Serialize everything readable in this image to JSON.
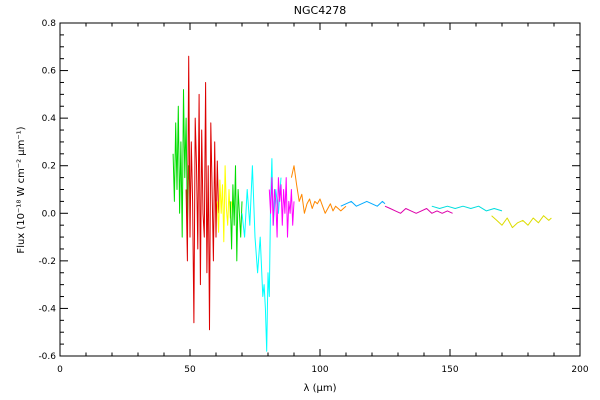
{
  "chart_data": {
    "type": "line",
    "title": "NGC4278",
    "xlabel": "λ (μm)",
    "ylabel": "Flux (10⁻¹⁸ W cm⁻² μm⁻¹)",
    "xlim": [
      0,
      200
    ],
    "ylim": [
      -0.6,
      0.8
    ],
    "xticks": [
      0,
      50,
      100,
      150,
      200
    ],
    "xtick_labels": [
      "0",
      "50",
      "100",
      "150",
      "200"
    ],
    "yticks": [
      -0.6,
      -0.4,
      -0.2,
      0.0,
      0.2,
      0.4,
      0.6,
      0.8
    ],
    "ytick_labels": [
      "-0.6",
      "-0.4",
      "-0.2",
      "0.0",
      "0.2",
      "0.4",
      "0.6",
      "0.8"
    ],
    "grid": false,
    "legend": false,
    "series": [
      {
        "color": "#00dd00",
        "x": [
          43.5,
          44.0,
          44.5,
          45.0,
          45.5,
          46.0,
          46.5,
          47.0,
          47.5,
          48.0,
          48.5,
          49.0,
          49.5,
          50.0
        ],
        "y": [
          0.25,
          0.05,
          0.38,
          0.1,
          0.45,
          0.0,
          0.3,
          -0.1,
          0.52,
          0.15,
          0.4,
          -0.05,
          0.2,
          0.1
        ]
      },
      {
        "color": "#dd0000",
        "x": [
          48.5,
          49.0,
          49.5,
          50.0,
          50.5,
          51.0,
          51.5,
          52.0,
          52.5,
          53.0,
          53.5,
          54.0,
          54.5,
          55.0,
          55.5,
          56.0,
          56.5,
          57.0,
          57.5,
          58.0,
          58.5,
          59.0,
          59.5,
          60.0,
          60.5,
          61.0
        ],
        "y": [
          0.1,
          -0.2,
          0.66,
          -0.1,
          0.3,
          0.05,
          -0.46,
          0.4,
          0.2,
          -0.15,
          0.5,
          -0.3,
          0.35,
          0.0,
          -0.1,
          0.55,
          -0.25,
          0.2,
          -0.49,
          0.38,
          0.1,
          -0.2,
          0.3,
          -0.1,
          0.22,
          0.0
        ]
      },
      {
        "color": "#ffff00",
        "x": [
          60.5,
          61.0,
          61.5,
          62.0,
          62.5,
          63.0,
          63.5,
          64.0,
          64.5,
          65.0,
          65.5,
          66.0
        ],
        "y": [
          0.05,
          -0.08,
          0.14,
          0.0,
          0.12,
          -0.12,
          0.2,
          0.02,
          -0.05,
          0.1,
          -0.02,
          0.05
        ]
      },
      {
        "color": "#00dd00",
        "x": [
          65.5,
          66.0,
          66.5,
          67.0,
          67.5,
          68.0,
          68.5,
          69.0,
          69.5,
          70.0
        ],
        "y": [
          0.05,
          -0.15,
          0.12,
          -0.05,
          0.2,
          -0.2,
          0.1,
          0.0,
          -0.1,
          0.05
        ]
      },
      {
        "color": "#00ffff",
        "x": [
          70.0,
          71.0,
          72.0,
          73.0,
          74.0,
          75.0,
          76.0,
          77.0,
          78.0,
          78.5,
          79.0,
          79.5,
          80.0,
          80.5,
          81.0,
          81.5,
          82.0,
          83.0,
          84.0,
          85.0
        ],
        "y": [
          0.0,
          -0.1,
          0.1,
          -0.05,
          0.2,
          -0.1,
          -0.25,
          -0.1,
          -0.35,
          -0.3,
          -0.4,
          -0.58,
          -0.25,
          -0.35,
          0.05,
          0.23,
          -0.05,
          0.1,
          0.0,
          0.15
        ]
      },
      {
        "color": "#ff00ff",
        "x": [
          80.5,
          81.0,
          81.5,
          82.0,
          82.5,
          83.0,
          83.5,
          84.0,
          84.5,
          85.0,
          85.5,
          86.0,
          86.5,
          87.0,
          87.5,
          88.0,
          88.5,
          89.0,
          89.5,
          90.0
        ],
        "y": [
          0.1,
          0.0,
          0.15,
          -0.05,
          0.1,
          0.05,
          -0.1,
          0.15,
          0.05,
          0.12,
          -0.05,
          0.1,
          0.0,
          0.15,
          -0.1,
          0.05,
          0.0,
          0.1,
          -0.05,
          0.05
        ]
      },
      {
        "color": "#ff8800",
        "x": [
          89.0,
          90.0,
          91.0,
          92.0,
          93.0,
          94.0,
          95.0,
          96.0,
          97.0,
          98.0,
          99.0,
          100.0,
          101.0,
          102.0,
          103.0,
          104.0,
          105.0,
          106.0,
          107.0,
          108.0,
          109.0,
          110.0
        ],
        "y": [
          0.15,
          0.2,
          0.12,
          0.05,
          0.08,
          0.0,
          0.04,
          0.06,
          0.02,
          0.05,
          0.04,
          0.06,
          0.03,
          0.0,
          0.02,
          0.04,
          0.01,
          0.03,
          0.02,
          0.01,
          0.02,
          0.03
        ]
      },
      {
        "color": "#00aaff",
        "x": [
          108.0,
          110.0,
          112.0,
          114.0,
          116.0,
          118.0,
          120.0,
          122.0,
          124.0,
          125.0
        ],
        "y": [
          0.03,
          0.04,
          0.05,
          0.03,
          0.04,
          0.05,
          0.04,
          0.03,
          0.05,
          0.04
        ]
      },
      {
        "color": "#dd00aa",
        "x": [
          125.0,
          127.0,
          129.0,
          131.0,
          133.0,
          135.0,
          137.0,
          139.0,
          141.0,
          143.0,
          145.0,
          147.0,
          149.0,
          151.0
        ],
        "y": [
          0.03,
          0.02,
          0.01,
          0.0,
          0.02,
          0.01,
          0.0,
          0.01,
          0.02,
          0.0,
          0.01,
          0.0,
          0.01,
          0.0
        ]
      },
      {
        "color": "#00dddd",
        "x": [
          143.0,
          146.0,
          149.0,
          152.0,
          155.0,
          158.0,
          161.0,
          164.0,
          167.0,
          170.0
        ],
        "y": [
          0.03,
          0.02,
          0.03,
          0.02,
          0.03,
          0.02,
          0.03,
          0.01,
          0.02,
          0.01
        ]
      },
      {
        "color": "#dddd00",
        "x": [
          166.0,
          168.0,
          170.0,
          172.0,
          174.0,
          176.0,
          178.0,
          180.0,
          182.0,
          184.0,
          186.0,
          188.0,
          189.0
        ],
        "y": [
          -0.01,
          -0.03,
          -0.05,
          -0.02,
          -0.06,
          -0.04,
          -0.03,
          -0.05,
          -0.02,
          -0.04,
          -0.01,
          -0.03,
          -0.02
        ]
      }
    ]
  }
}
